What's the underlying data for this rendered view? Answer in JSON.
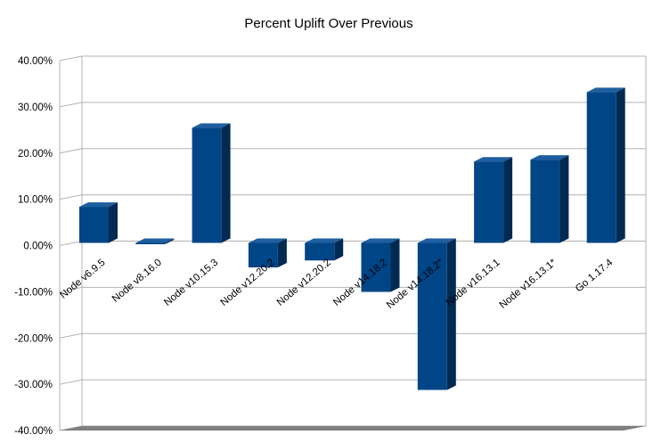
{
  "chart_data": {
    "type": "bar",
    "title": "Percent Uplift Over Previous",
    "xlabel": "",
    "ylabel": "",
    "categories": [
      "Node v6.9.5",
      "Node v8.16.0",
      "Node v10.15.3",
      "Node v12.20.2",
      "Node v12.20.2",
      "Node v14.18.2",
      "Node v14.18.2*",
      "Node v16.13.1",
      "Node v16.13.1*",
      "Go 1.17.4"
    ],
    "values": [
      7.8,
      0.0,
      24.9,
      -5.3,
      -3.8,
      -10.6,
      -31.8,
      17.6,
      18.0,
      32.6
    ],
    "ylim": [
      -40,
      40
    ],
    "ytick_values": [
      -40,
      -30,
      -20,
      -10,
      0,
      10,
      20,
      30,
      40
    ],
    "ytick_labels": [
      "-40.00%",
      "-30.00%",
      "-20.00%",
      "-10.00%",
      "0.00%",
      "10.00%",
      "20.00%",
      "30.00%",
      "40.00%"
    ],
    "grid": true,
    "legend": "none",
    "colors": {
      "bar_front": "#004586",
      "bar_side": "#002a52",
      "bar_top": "#1f5fa0",
      "floor": "#7f7f7f",
      "grid": "#b3b3b3"
    }
  }
}
